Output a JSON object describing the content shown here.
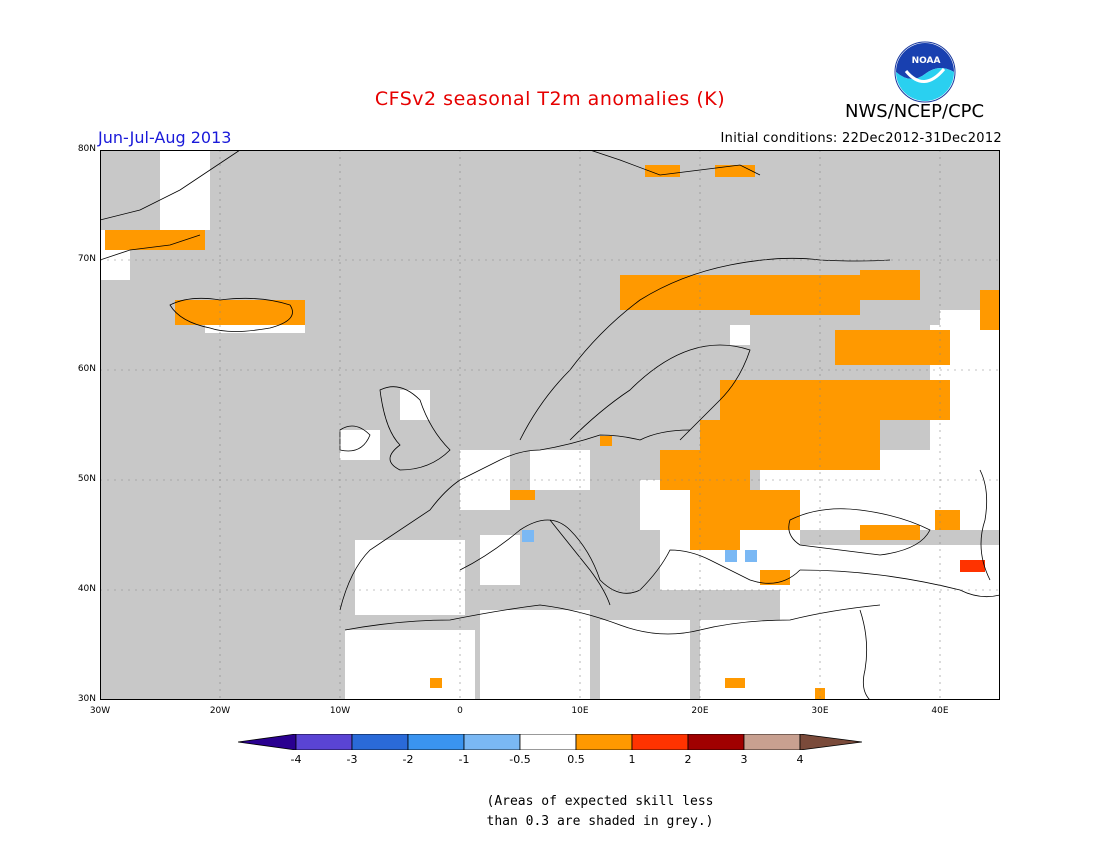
{
  "title": "CFSv2 seasonal T2m anomalies (K)",
  "agency": "NWS/NCEP/CPC",
  "logo_text": "NOAA",
  "season": "Jun-Jul-Aug 2013",
  "initial_conditions": "Initial conditions: 22Dec2012-31Dec2012",
  "lat_labels": [
    "80N",
    "70N",
    "60N",
    "50N",
    "40N",
    "30N"
  ],
  "lon_labels": [
    "30W",
    "20W",
    "10W",
    "0",
    "10E",
    "20E",
    "30E",
    "40E"
  ],
  "map_extent": {
    "lon_min": -30,
    "lon_max": 45,
    "lat_min": 30,
    "lat_max": 80
  },
  "colorbar": {
    "ticks": [
      "-4",
      "-3",
      "-2",
      "-1",
      "-0.5",
      "0.5",
      "1",
      "2",
      "3",
      "4"
    ],
    "colors": [
      "#2a0090",
      "#5a44d4",
      "#2a6ad8",
      "#3a94f0",
      "#7ab8f4",
      "#ffffff",
      "#ff9900",
      "#ff3300",
      "#a00000",
      "#c8a090",
      "#7a4a3a"
    ]
  },
  "colors": {
    "grey_mask": "#c8c8c8",
    "warm_anomaly": "#ff9900",
    "strong_warm": "#ff3300",
    "cool_anomaly": "#7ab8f4"
  },
  "note_line1": "(Areas of expected skill less",
  "note_line2": "than 0.3 are shaded in grey.)"
}
